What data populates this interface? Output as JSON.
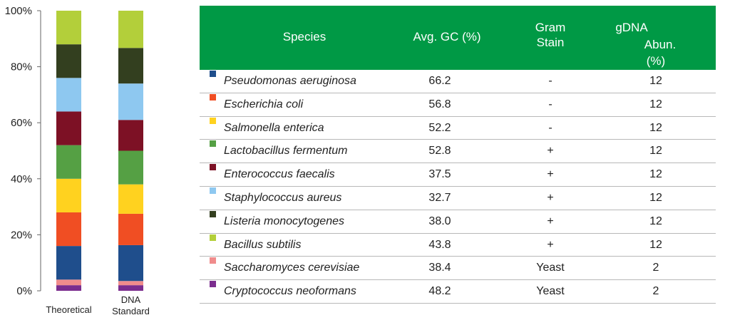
{
  "chart_data": {
    "type": "bar",
    "stacked": true,
    "categories": [
      "Theoretical",
      "DNA Standard"
    ],
    "category_lines": [
      [
        "Theoretical"
      ],
      [
        "DNA",
        "Standard"
      ]
    ],
    "ylim": [
      0,
      100
    ],
    "y_ticks": [
      "0%",
      "20%",
      "40%",
      "60%",
      "80%",
      "100%"
    ],
    "series": [
      {
        "name": "Cryptococcus neoformans",
        "color": "#7B2D8E",
        "values": [
          2,
          2
        ]
      },
      {
        "name": "Saccharomyces cerevisiae",
        "color": "#F08C8C",
        "values": [
          2,
          1.5
        ]
      },
      {
        "name": "Pseudomonas aeruginosa",
        "color": "#1F4E8C",
        "values": [
          12,
          12.8
        ]
      },
      {
        "name": "Escherichia coli",
        "color": "#F04E23",
        "values": [
          12,
          11.2
        ]
      },
      {
        "name": "Salmonella enterica",
        "color": "#FFD21F",
        "values": [
          12,
          10.5
        ]
      },
      {
        "name": "Lactobacillus fermentum",
        "color": "#55A044",
        "values": [
          12,
          12
        ]
      },
      {
        "name": "Enterococcus faecalis",
        "color": "#7D1125",
        "values": [
          12,
          11
        ]
      },
      {
        "name": "Staphylococcus aureus",
        "color": "#8EC8F0",
        "values": [
          12,
          13
        ]
      },
      {
        "name": "Listeria monocytogenes",
        "color": "#333F1F",
        "values": [
          12,
          12.7
        ]
      },
      {
        "name": "Bacillus subtilis",
        "color": "#B3CF3A",
        "values": [
          12,
          13.3
        ]
      }
    ]
  },
  "table": {
    "headers": {
      "species": "Species",
      "gc": "Avg. GC (%)",
      "gram_line1": "Gram",
      "gram_line2": "Stain",
      "gdna_line1": "gDNA",
      "gdna_line2": "Abun.",
      "gdna_line3": "(%)"
    },
    "header_color": "#009945",
    "rows": [
      {
        "species": "Pseudomonas aeruginosa",
        "gc": "66.2",
        "gram": "-",
        "abun": "12",
        "color": "#1F4E8C"
      },
      {
        "species": "Escherichia coli",
        "gc": "56.8",
        "gram": "-",
        "abun": "12",
        "color": "#F04E23"
      },
      {
        "species": "Salmonella enterica",
        "gc": "52.2",
        "gram": "-",
        "abun": "12",
        "color": "#FFD21F"
      },
      {
        "species": "Lactobacillus fermentum",
        "gc": "52.8",
        "gram": "+",
        "abun": "12",
        "color": "#55A044"
      },
      {
        "species": "Enterococcus faecalis",
        "gc": "37.5",
        "gram": "+",
        "abun": "12",
        "color": "#7D1125"
      },
      {
        "species": "Staphylococcus aureus",
        "gc": "32.7",
        "gram": "+",
        "abun": "12",
        "color": "#8EC8F0"
      },
      {
        "species": "Listeria monocytogenes",
        "gc": "38.0",
        "gram": "+",
        "abun": "12",
        "color": "#333F1F"
      },
      {
        "species": "Bacillus subtilis",
        "gc": "43.8",
        "gram": "+",
        "abun": "12",
        "color": "#B3CF3A"
      },
      {
        "species": "Saccharomyces cerevisiae",
        "gc": "38.4",
        "gram": "Yeast",
        "abun": "2",
        "color": "#F08C8C"
      },
      {
        "species": "Cryptococcus neoformans",
        "gc": "48.2",
        "gram": "Yeast",
        "abun": "2",
        "color": "#7B2D8E"
      }
    ]
  }
}
